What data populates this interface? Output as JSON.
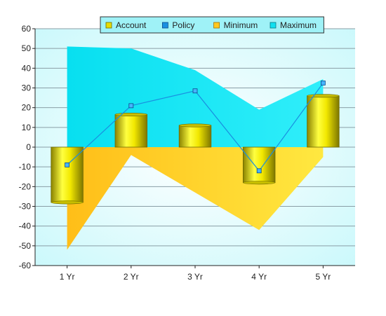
{
  "chart_data": {
    "type": "bar",
    "categories": [
      "1 Yr",
      "2 Yr",
      "3 Yr",
      "4 Yr",
      "5 Yr"
    ],
    "ylim": [
      -60,
      60
    ],
    "yticks": [
      -60,
      -50,
      -40,
      -30,
      -20,
      -10,
      0,
      10,
      20,
      30,
      40,
      50,
      60
    ],
    "grid": true,
    "legend_position": "top-center",
    "series": [
      {
        "name": "Account",
        "kind": "bar",
        "values": [
          -28,
          16.5,
          11,
          -18,
          26
        ],
        "color": "#d4c800"
      },
      {
        "name": "Policy",
        "kind": "line",
        "values": [
          -9,
          21,
          28.5,
          -12,
          32.5
        ],
        "color": "#1a8fe0"
      },
      {
        "name": "Minimum",
        "kind": "area",
        "values": [
          -52,
          -4,
          -23,
          -42,
          -5
        ],
        "color": "#ffc81e"
      },
      {
        "name": "Maximum",
        "kind": "area",
        "values": [
          51,
          50,
          39,
          19,
          34.5
        ],
        "color": "#10e0f0"
      }
    ]
  }
}
